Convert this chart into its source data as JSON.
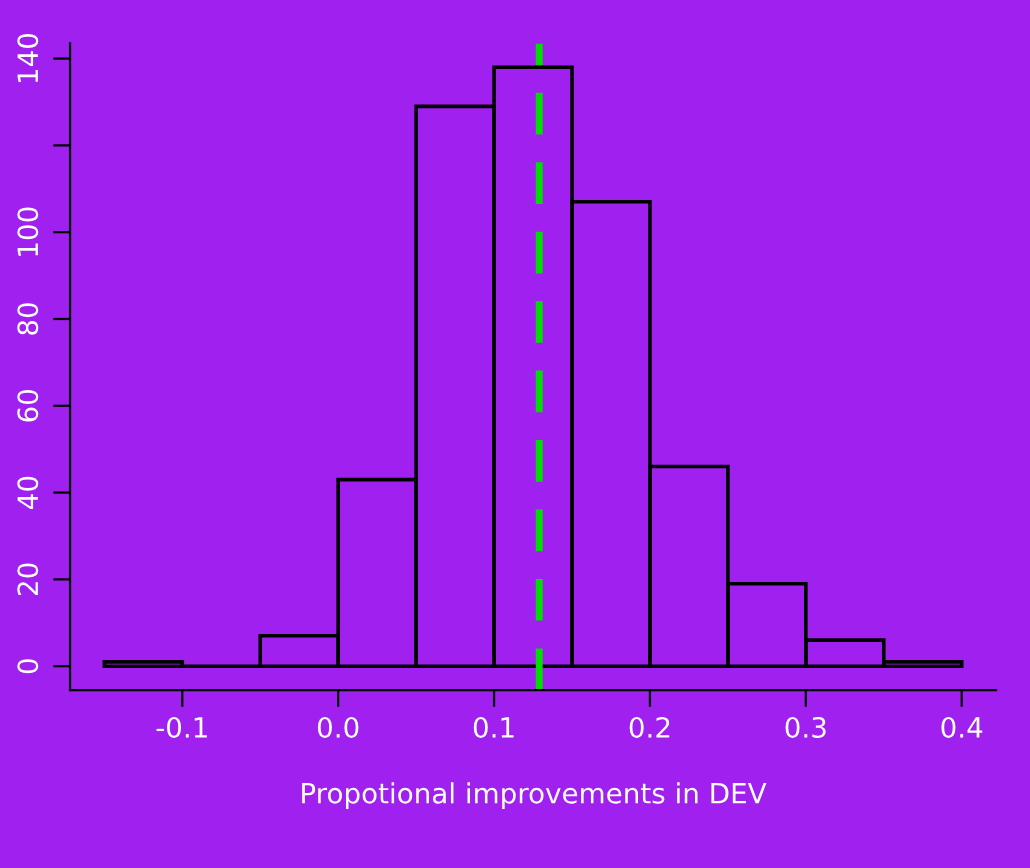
{
  "chart_data": {
    "type": "histogram",
    "xlabel": "Propotional improvements in DEV",
    "bins": [
      -0.15,
      -0.1,
      -0.05,
      0.0,
      0.05,
      0.1,
      0.15,
      0.2,
      0.25,
      0.3,
      0.35,
      0.4
    ],
    "values": [
      1,
      0,
      7,
      43,
      129,
      138,
      107,
      46,
      19,
      6,
      1
    ],
    "color": "#000000",
    "xlim": [
      -0.172,
      0.422
    ],
    "xticks": [
      -0.1,
      {
        "value": 0.0,
        "label": "0.0"
      },
      0.1,
      0.2,
      0.3,
      0.4
    ],
    "ylim": [
      -5.5,
      143.5
    ],
    "yticks": [
      0,
      20,
      40,
      60,
      80,
      100,
      {
        "value": 120,
        "label": null
      },
      140
    ],
    "ref_lines": [
      {
        "axis": "x",
        "value": 0.129,
        "color": "#00dd00",
        "line_style": "dashed"
      }
    ],
    "grid": false
  }
}
